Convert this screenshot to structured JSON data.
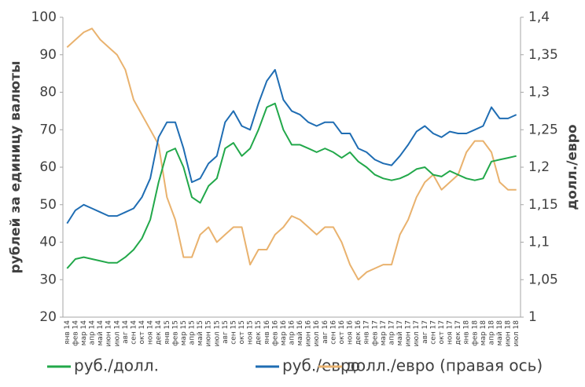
{
  "chart_data": {
    "type": "line",
    "y_label": "рублей за единицу валюты",
    "y2_label": "долл./евро",
    "categories": [
      "янв 14",
      "фев 14",
      "мар 14",
      "апр 14",
      "май 14",
      "июн 14",
      "июл 14",
      "авг 14",
      "сен 14",
      "окт 14",
      "ноя 14",
      "дек 14",
      "янв 15",
      "фев 15",
      "мар 15",
      "апр 15",
      "май 15",
      "июн 15",
      "июл 15",
      "авг 15",
      "сен 15",
      "окт 15",
      "ноя 15",
      "дек 15",
      "янв 16",
      "фев 16",
      "мар 16",
      "апр 16",
      "май 16",
      "июн 16",
      "июл 16",
      "авг 16",
      "сен 16",
      "окт 16",
      "ноя 16",
      "дек 16",
      "янв 17",
      "фев 17",
      "мар 17",
      "апр 17",
      "май 17",
      "июн 17",
      "июл 17",
      "авг 17",
      "сен 17",
      "окт 17",
      "ноя 17",
      "дек 17",
      "янв 18",
      "фев 18",
      "мар 18",
      "апр 18",
      "май 18",
      "июн 18",
      "июл 18"
    ],
    "series": [
      {
        "name": "руб./долл.",
        "color": "#22a84a",
        "values": [
          33,
          35.5,
          36,
          35.5,
          35,
          34.5,
          34.5,
          36,
          38,
          41,
          46,
          56,
          64,
          65,
          60,
          52,
          50.5,
          55,
          57,
          65,
          66.5,
          63,
          65,
          70,
          76,
          77,
          70,
          66,
          66,
          65,
          64,
          65,
          64,
          62.5,
          64,
          61.5,
          60,
          58,
          57,
          56.5,
          57,
          58,
          59.5,
          60,
          58,
          57.5,
          59,
          58,
          57,
          56.5,
          57,
          61.5,
          62,
          62.5,
          63
        ]
      },
      {
        "name": "руб./евро",
        "color": "#1f6db3",
        "values": [
          45,
          48.5,
          50,
          49,
          48,
          47,
          47,
          48,
          49,
          52,
          57,
          68,
          72,
          72,
          65,
          56,
          57,
          61,
          63,
          72,
          75,
          71,
          70,
          77,
          83,
          86,
          78,
          75,
          74,
          72,
          71,
          72,
          72,
          69,
          69,
          65,
          64,
          62,
          61,
          60.5,
          63,
          66,
          69.5,
          71,
          69,
          68,
          69.5,
          69,
          69,
          70,
          71,
          76,
          73,
          73,
          74
        ]
      },
      {
        "name": "долл./евро (правая ось)",
        "color": "#e9b26e",
        "axis": "y2",
        "values": [
          1.36,
          1.37,
          1.38,
          1.385,
          1.37,
          1.36,
          1.35,
          1.33,
          1.29,
          1.27,
          1.25,
          1.23,
          1.16,
          1.13,
          1.08,
          1.08,
          1.11,
          1.12,
          1.1,
          1.11,
          1.12,
          1.12,
          1.07,
          1.09,
          1.09,
          1.11,
          1.12,
          1.135,
          1.13,
          1.12,
          1.11,
          1.12,
          1.12,
          1.1,
          1.07,
          1.05,
          1.06,
          1.065,
          1.07,
          1.07,
          1.11,
          1.13,
          1.16,
          1.18,
          1.19,
          1.17,
          1.18,
          1.19,
          1.22,
          1.235,
          1.235,
          1.22,
          1.18,
          1.17,
          1.17
        ]
      }
    ],
    "ylim": [
      20,
      100
    ],
    "yticks": [
      20,
      30,
      40,
      50,
      60,
      70,
      80,
      90,
      100
    ],
    "y2lim": [
      1,
      1.4
    ],
    "y2ticks": [
      1,
      {
        "value": 1.05,
        "label": "1,05"
      },
      {
        "value": 1.1,
        "label": "1,1"
      },
      {
        "value": 1.15,
        "label": "1,15"
      },
      {
        "value": 1.2,
        "label": "1,2"
      },
      {
        "value": 1.25,
        "label": "1,25"
      },
      {
        "value": 1.3,
        "label": "1,3"
      },
      {
        "value": 1.35,
        "label": "1,35"
      },
      {
        "value": 1.4,
        "label": "1,4"
      }
    ],
    "grid": false
  }
}
